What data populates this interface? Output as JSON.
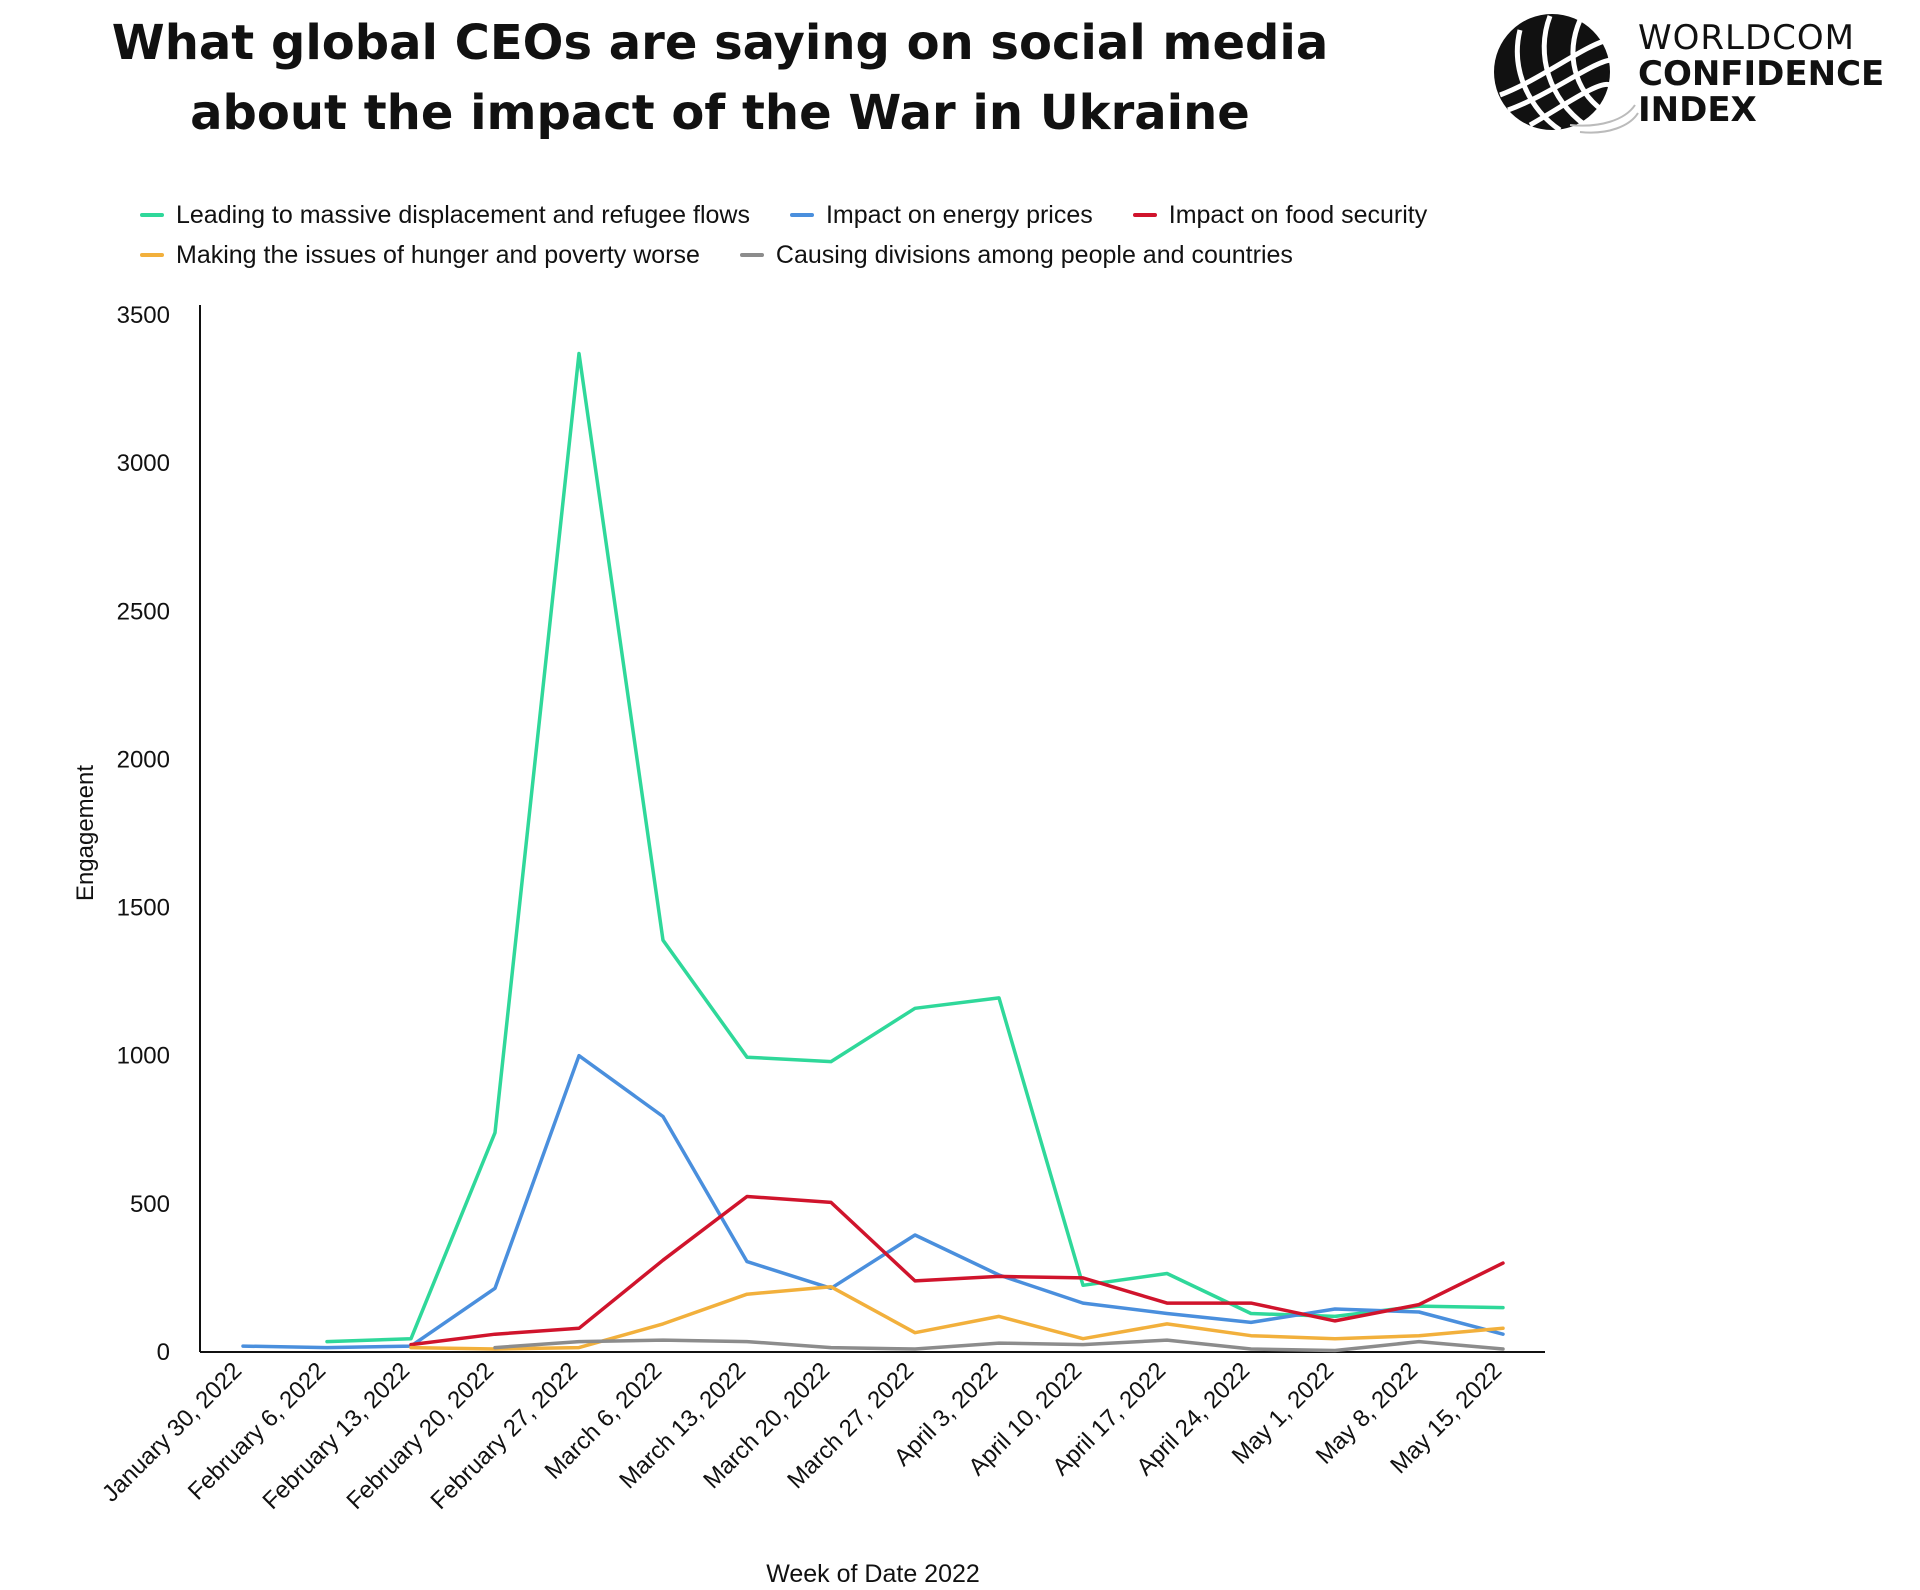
{
  "header": {
    "title_line1": "What global CEOs are saying on social media",
    "title_line2": "about the impact of the War in Ukraine"
  },
  "logo": {
    "icon": "globe-icon",
    "line1": "WORLDCOM",
    "line2": "CONFIDENCE",
    "line3": "INDEX"
  },
  "chart_data": {
    "type": "line",
    "title": "What global CEOs are saying on social media about the impact of the War in Ukraine",
    "xlabel": "Week of Date 2022",
    "ylabel": "Engagement",
    "ylim": [
      0,
      3500
    ],
    "yticks": [
      0,
      500,
      1000,
      1500,
      2000,
      2500,
      3000,
      3500
    ],
    "grid": false,
    "legend_position": "top",
    "categories": [
      "January 30, 2022",
      "February 6, 2022",
      "February 13, 2022",
      "February 20, 2022",
      "February 27, 2022",
      "March 6, 2022",
      "March 13, 2022",
      "March 20, 2022",
      "March 27, 2022",
      "April 3, 2022",
      "April 10, 2022",
      "April 17, 2022",
      "April 24, 2022",
      "May 1, 2022",
      "May 8, 2022",
      "May 15, 2022"
    ],
    "series": [
      {
        "name": "Leading to massive displacement and refugee flows",
        "color": "#2fd89a",
        "values": [
          null,
          35,
          45,
          740,
          3370,
          1390,
          995,
          980,
          1160,
          1195,
          225,
          265,
          130,
          120,
          155,
          150
        ]
      },
      {
        "name": "Impact on energy prices",
        "color": "#4a8fdd",
        "values": [
          20,
          15,
          20,
          215,
          1000,
          795,
          305,
          215,
          395,
          260,
          165,
          130,
          100,
          145,
          135,
          60
        ]
      },
      {
        "name": "Impact on food security",
        "color": "#d0142c",
        "values": [
          null,
          null,
          25,
          60,
          80,
          310,
          525,
          505,
          240,
          255,
          250,
          165,
          165,
          105,
          160,
          300
        ]
      },
      {
        "name": "Making the issues of hunger and poverty worse",
        "color": "#f2b03c",
        "values": [
          null,
          null,
          15,
          10,
          15,
          95,
          195,
          220,
          65,
          120,
          45,
          95,
          55,
          45,
          55,
          80
        ]
      },
      {
        "name": "Causing divisions among people and countries",
        "color": "#8c8c8c",
        "values": [
          null,
          null,
          null,
          15,
          35,
          40,
          35,
          15,
          10,
          30,
          25,
          40,
          10,
          5,
          35,
          10
        ]
      }
    ]
  }
}
